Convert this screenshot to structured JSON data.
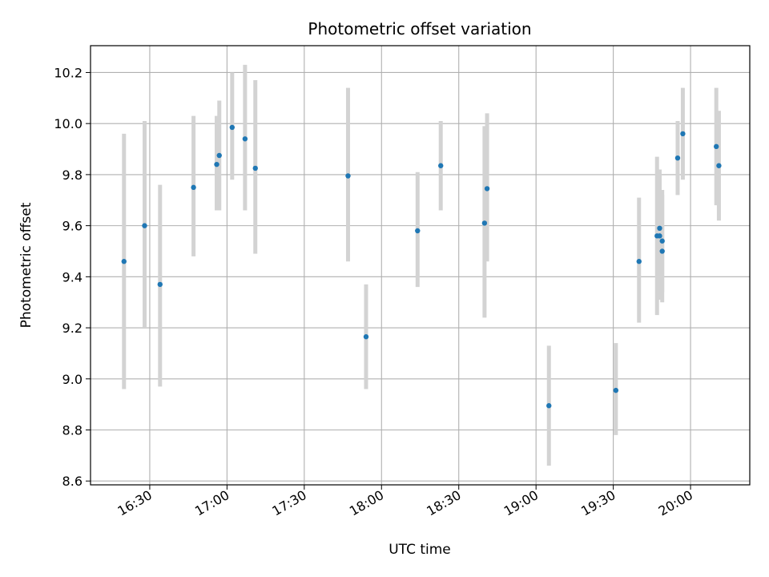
{
  "chart_data": {
    "type": "scatter",
    "title": "Photometric offset variation",
    "xlabel": "UTC time",
    "ylabel": "Photometric offset",
    "xlim": [
      "16:07",
      "20:23"
    ],
    "ylim": [
      8.585,
      10.305
    ],
    "grid": true,
    "x_ticks": [
      "16:30",
      "17:00",
      "17:30",
      "18:00",
      "18:30",
      "19:00",
      "19:30",
      "20:00"
    ],
    "y_ticks": [
      "8.6",
      "8.8",
      "9.0",
      "9.2",
      "9.4",
      "9.6",
      "9.8",
      "10.0",
      "10.2"
    ],
    "marker_color": "#1f77b4",
    "errorbar_color": "#d3d3d3",
    "points": [
      {
        "t": "16:20",
        "y": 9.46,
        "lo": 8.96,
        "hi": 9.96
      },
      {
        "t": "16:28",
        "y": 9.6,
        "lo": 9.2,
        "hi": 10.01
      },
      {
        "t": "16:34",
        "y": 9.37,
        "lo": 8.97,
        "hi": 9.76
      },
      {
        "t": "16:47",
        "y": 9.75,
        "lo": 9.48,
        "hi": 10.03
      },
      {
        "t": "16:56",
        "y": 9.84,
        "lo": 9.66,
        "hi": 10.03
      },
      {
        "t": "16:57",
        "y": 9.875,
        "lo": 9.66,
        "hi": 10.09
      },
      {
        "t": "17:02",
        "y": 9.985,
        "lo": 9.78,
        "hi": 10.2
      },
      {
        "t": "17:07",
        "y": 9.94,
        "lo": 9.66,
        "hi": 10.23
      },
      {
        "t": "17:11",
        "y": 9.825,
        "lo": 9.49,
        "hi": 10.17
      },
      {
        "t": "17:47",
        "y": 9.795,
        "lo": 9.46,
        "hi": 10.14
      },
      {
        "t": "17:54",
        "y": 9.165,
        "lo": 8.96,
        "hi": 9.37
      },
      {
        "t": "18:14",
        "y": 9.58,
        "lo": 9.36,
        "hi": 9.81
      },
      {
        "t": "18:23",
        "y": 9.835,
        "lo": 9.66,
        "hi": 10.01
      },
      {
        "t": "18:40",
        "y": 9.61,
        "lo": 9.24,
        "hi": 9.99
      },
      {
        "t": "18:41",
        "y": 9.745,
        "lo": 9.46,
        "hi": 10.04
      },
      {
        "t": "19:05",
        "y": 8.895,
        "lo": 8.66,
        "hi": 9.13
      },
      {
        "t": "19:31",
        "y": 8.955,
        "lo": 8.78,
        "hi": 9.14
      },
      {
        "t": "19:40",
        "y": 9.46,
        "lo": 9.22,
        "hi": 9.71
      },
      {
        "t": "19:47",
        "y": 9.56,
        "lo": 9.25,
        "hi": 9.87
      },
      {
        "t": "19:48",
        "y": 9.59,
        "lo": 9.36,
        "hi": 9.82
      },
      {
        "t": "19:48",
        "y": 9.56,
        "lo": 9.31,
        "hi": 9.8
      },
      {
        "t": "19:49",
        "y": 9.5,
        "lo": 9.3,
        "hi": 9.72
      },
      {
        "t": "19:49",
        "y": 9.54,
        "lo": 9.34,
        "hi": 9.74
      },
      {
        "t": "19:55",
        "y": 9.865,
        "lo": 9.72,
        "hi": 10.01
      },
      {
        "t": "19:57",
        "y": 9.96,
        "lo": 9.78,
        "hi": 10.14
      },
      {
        "t": "20:10",
        "y": 9.91,
        "lo": 9.68,
        "hi": 10.14
      },
      {
        "t": "20:11",
        "y": 9.835,
        "lo": 9.62,
        "hi": 10.05
      }
    ]
  }
}
